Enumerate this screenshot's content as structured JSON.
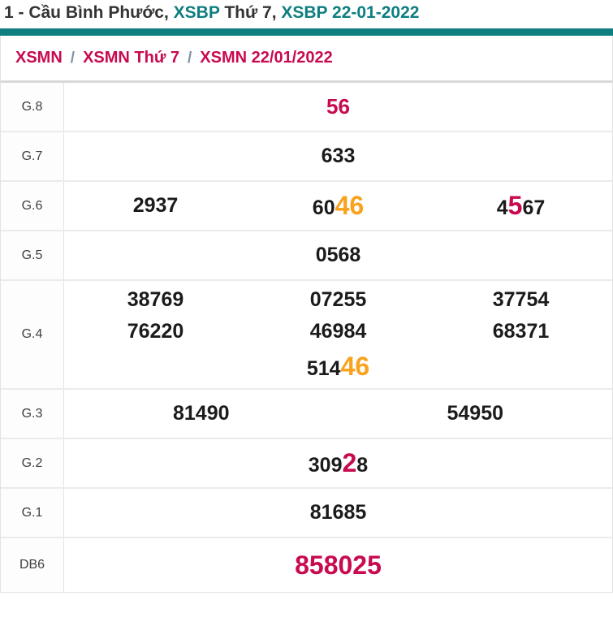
{
  "title": {
    "parts": [
      {
        "text": "1 - Cầu Bình Phước, ",
        "style": "dark"
      },
      {
        "text": "XSBP",
        "style": "teal"
      },
      {
        "text": " Thứ 7, ",
        "style": "dark"
      },
      {
        "text": "XSBP 22-01-2022",
        "style": "teal"
      }
    ]
  },
  "breadcrumb": {
    "separator": "/",
    "items": [
      {
        "label": "XSMN"
      },
      {
        "label": "XSMN Thứ 7"
      },
      {
        "label": "XSMN 22/01/2022"
      }
    ]
  },
  "colors": {
    "teal": "#0f7e81",
    "crimson": "#c80a50",
    "orange": "#f9a21d",
    "digit_black": "#1b1b1b",
    "border_gray": "#e3e3e3"
  },
  "results_table": {
    "rows": [
      {
        "label": "G.8",
        "cols": 1,
        "emphasis": "red-medium",
        "values": [
          [
            {
              "text": "56"
            }
          ]
        ]
      },
      {
        "label": "G.7",
        "cols": 1,
        "values": [
          [
            {
              "text": "633"
            }
          ]
        ]
      },
      {
        "label": "G.6",
        "cols": 3,
        "values": [
          [
            {
              "text": "2937"
            }
          ],
          [
            {
              "text": "60"
            },
            {
              "text": "46",
              "style": "orange"
            }
          ],
          [
            {
              "text": "4"
            },
            {
              "text": "5",
              "style": "red"
            },
            {
              "text": "67"
            }
          ]
        ]
      },
      {
        "label": "G.5",
        "cols": 1,
        "values": [
          [
            {
              "text": "0568"
            }
          ]
        ]
      },
      {
        "label": "G.4",
        "cols": 3,
        "values": [
          [
            {
              "text": "38769"
            }
          ],
          [
            {
              "text": "07255"
            }
          ],
          [
            {
              "text": "37754"
            }
          ],
          [
            {
              "text": "76220"
            }
          ],
          [
            {
              "text": "46984"
            }
          ],
          [
            {
              "text": "68371"
            }
          ],
          [
            {
              "text": "514"
            },
            {
              "text": "46",
              "style": "orange"
            }
          ]
        ]
      },
      {
        "label": "G.3",
        "cols": 2,
        "values": [
          [
            {
              "text": "81490"
            }
          ],
          [
            {
              "text": "54950"
            }
          ]
        ]
      },
      {
        "label": "G.2",
        "cols": 1,
        "values": [
          [
            {
              "text": "309"
            },
            {
              "text": "2",
              "style": "red"
            },
            {
              "text": "8"
            }
          ]
        ]
      },
      {
        "label": "G.1",
        "cols": 1,
        "values": [
          [
            {
              "text": "81685"
            }
          ]
        ]
      },
      {
        "label": "DB6",
        "cols": 1,
        "emphasis": "red-large",
        "values": [
          [
            {
              "text": "858025"
            }
          ]
        ]
      }
    ]
  }
}
